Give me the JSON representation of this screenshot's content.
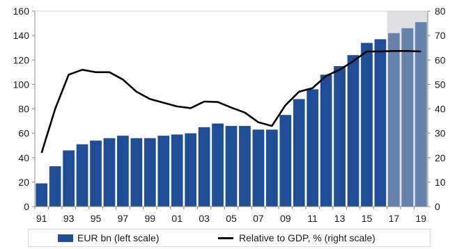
{
  "chart_data": {
    "type": "bar",
    "categories": [
      "91",
      "92",
      "93",
      "94",
      "95",
      "96",
      "97",
      "98",
      "99",
      "00",
      "01",
      "02",
      "03",
      "04",
      "05",
      "06",
      "07",
      "08",
      "09",
      "10",
      "11",
      "12",
      "13",
      "14",
      "15",
      "16",
      "17",
      "18",
      "19"
    ],
    "x_tick_labels": [
      "91",
      "93",
      "95",
      "97",
      "99",
      "01",
      "03",
      "05",
      "07",
      "09",
      "11",
      "13",
      "15",
      "17",
      "19"
    ],
    "series": [
      {
        "name": "EUR bn (left scale)",
        "type": "bar",
        "axis": "left",
        "values": [
          19,
          33,
          46,
          51,
          54,
          56,
          58,
          56,
          56,
          58,
          59,
          60,
          65,
          68,
          66,
          66,
          63,
          63,
          75,
          88,
          96,
          108,
          115,
          124,
          134,
          137,
          142,
          146,
          151
        ]
      },
      {
        "name": "Relative to GDP, % (right scale)",
        "type": "line",
        "axis": "right",
        "values": [
          22,
          40,
          54,
          56,
          55,
          55,
          52,
          47,
          44,
          42.5,
          41,
          40.3,
          43,
          42.8,
          40.5,
          38.5,
          34.5,
          33,
          41.5,
          47,
          48.5,
          53.5,
          56,
          59.5,
          63.5,
          63.5,
          63.7,
          63.7,
          63.5
        ]
      }
    ],
    "forecast_from": "17",
    "left_axis": {
      "ylim": [
        0,
        160
      ],
      "ticks": [
        0,
        20,
        40,
        60,
        80,
        100,
        120,
        140,
        160
      ]
    },
    "right_axis": {
      "ylim": [
        0,
        80
      ],
      "ticks": [
        0,
        10,
        20,
        30,
        40,
        50,
        60,
        70,
        80
      ]
    },
    "colors": {
      "bar": "#1f4e96",
      "bar_forecast": "#6683ae",
      "line": "#000000",
      "forecast_shade": "#e0e0e4",
      "axis": "#888888"
    },
    "legend": {
      "position": "bottom",
      "bar_label": "EUR bn (left scale)",
      "line_label": "Relative to GDP, % (right scale)"
    }
  }
}
